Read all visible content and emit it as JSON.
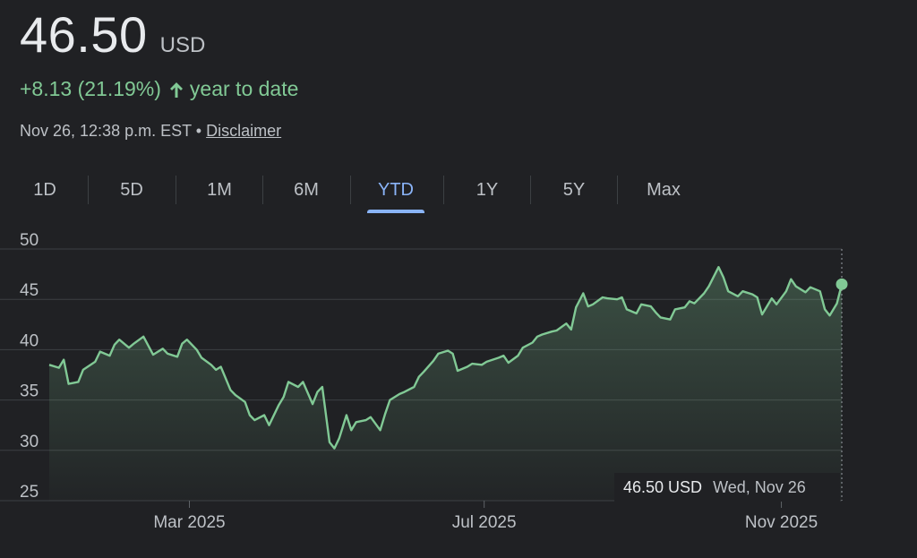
{
  "quote": {
    "price": "46.50",
    "currency": "USD",
    "change": "+8.13 (21.19%)",
    "change_suffix": "year to date",
    "timestamp": "Nov 26, 12:38 p.m. EST",
    "separator": "•",
    "disclaimer": "Disclaimer"
  },
  "tabs": [
    "1D",
    "5D",
    "1M",
    "6M",
    "YTD",
    "1Y",
    "5Y",
    "Max"
  ],
  "active_tab": "YTD",
  "tooltip": {
    "value": "46.50 USD",
    "date": "Wed, Nov 26"
  },
  "colors": {
    "line": "#81c995",
    "active_tab": "#8ab4f8",
    "background": "#202124",
    "grid": "#3c4043"
  },
  "chart_data": {
    "type": "area",
    "title": "",
    "xlabel": "",
    "ylabel": "",
    "ylim": [
      25,
      50
    ],
    "yticks": [
      25,
      30,
      35,
      40,
      45,
      50
    ],
    "xticks": [
      {
        "label": "Mar 2025",
        "date": "2025-03-01"
      },
      {
        "label": "Jul 2025",
        "date": "2025-07-01"
      },
      {
        "label": "Nov 2025",
        "date": "2025-11-01"
      }
    ],
    "grid": true,
    "series": [
      {
        "points": [
          [
            "2025-01-02",
            38.5
          ],
          [
            "2025-01-06",
            38.2
          ],
          [
            "2025-01-08",
            39.0
          ],
          [
            "2025-01-10",
            36.6
          ],
          [
            "2025-01-14",
            36.8
          ],
          [
            "2025-01-16",
            38.0
          ],
          [
            "2025-01-21",
            38.8
          ],
          [
            "2025-01-23",
            39.8
          ],
          [
            "2025-01-27",
            39.4
          ],
          [
            "2025-01-29",
            40.5
          ],
          [
            "2025-01-31",
            41.0
          ],
          [
            "2025-02-04",
            40.2
          ],
          [
            "2025-02-06",
            40.6
          ],
          [
            "2025-02-10",
            41.3
          ],
          [
            "2025-02-12",
            40.4
          ],
          [
            "2025-02-14",
            39.5
          ],
          [
            "2025-02-18",
            40.1
          ],
          [
            "2025-02-20",
            39.6
          ],
          [
            "2025-02-24",
            39.3
          ],
          [
            "2025-02-26",
            40.6
          ],
          [
            "2025-02-28",
            41.0
          ],
          [
            "2025-03-04",
            40.0
          ],
          [
            "2025-03-06",
            39.2
          ],
          [
            "2025-03-10",
            38.5
          ],
          [
            "2025-03-12",
            38.0
          ],
          [
            "2025-03-14",
            38.3
          ],
          [
            "2025-03-18",
            36.0
          ],
          [
            "2025-03-20",
            35.5
          ],
          [
            "2025-03-24",
            34.8
          ],
          [
            "2025-03-26",
            33.5
          ],
          [
            "2025-03-28",
            33.0
          ],
          [
            "2025-04-01",
            33.5
          ],
          [
            "2025-04-03",
            32.5
          ],
          [
            "2025-04-07",
            34.5
          ],
          [
            "2025-04-09",
            35.3
          ],
          [
            "2025-04-11",
            36.8
          ],
          [
            "2025-04-15",
            36.3
          ],
          [
            "2025-04-17",
            36.8
          ],
          [
            "2025-04-21",
            34.6
          ],
          [
            "2025-04-23",
            35.8
          ],
          [
            "2025-04-25",
            36.3
          ],
          [
            "2025-04-28",
            30.8
          ],
          [
            "2025-04-30",
            30.2
          ],
          [
            "2025-05-02",
            31.2
          ],
          [
            "2025-05-05",
            33.5
          ],
          [
            "2025-05-07",
            32.0
          ],
          [
            "2025-05-09",
            32.8
          ],
          [
            "2025-05-13",
            33.0
          ],
          [
            "2025-05-15",
            33.3
          ],
          [
            "2025-05-19",
            32.0
          ],
          [
            "2025-05-21",
            33.6
          ],
          [
            "2025-05-23",
            35.0
          ],
          [
            "2025-05-27",
            35.6
          ],
          [
            "2025-05-29",
            35.8
          ],
          [
            "2025-06-02",
            36.3
          ],
          [
            "2025-06-04",
            37.3
          ],
          [
            "2025-06-06",
            37.8
          ],
          [
            "2025-06-10",
            38.9
          ],
          [
            "2025-06-12",
            39.6
          ],
          [
            "2025-06-16",
            39.9
          ],
          [
            "2025-06-18",
            39.6
          ],
          [
            "2025-06-20",
            37.9
          ],
          [
            "2025-06-24",
            38.3
          ],
          [
            "2025-06-26",
            38.6
          ],
          [
            "2025-06-30",
            38.5
          ],
          [
            "2025-07-02",
            38.8
          ],
          [
            "2025-07-07",
            39.2
          ],
          [
            "2025-07-09",
            39.4
          ],
          [
            "2025-07-11",
            38.7
          ],
          [
            "2025-07-15",
            39.4
          ],
          [
            "2025-07-17",
            40.2
          ],
          [
            "2025-07-21",
            40.7
          ],
          [
            "2025-07-23",
            41.3
          ],
          [
            "2025-07-25",
            41.5
          ],
          [
            "2025-07-29",
            41.8
          ],
          [
            "2025-07-31",
            41.9
          ],
          [
            "2025-08-04",
            42.6
          ],
          [
            "2025-08-06",
            42.0
          ],
          [
            "2025-08-08",
            44.2
          ],
          [
            "2025-08-11",
            45.6
          ],
          [
            "2025-08-13",
            44.3
          ],
          [
            "2025-08-15",
            44.5
          ],
          [
            "2025-08-19",
            45.2
          ],
          [
            "2025-08-21",
            45.1
          ],
          [
            "2025-08-25",
            45.0
          ],
          [
            "2025-08-27",
            45.2
          ],
          [
            "2025-08-29",
            44.0
          ],
          [
            "2025-09-02",
            43.6
          ],
          [
            "2025-09-04",
            44.5
          ],
          [
            "2025-09-08",
            44.3
          ],
          [
            "2025-09-10",
            43.7
          ],
          [
            "2025-09-12",
            43.2
          ],
          [
            "2025-09-16",
            43.0
          ],
          [
            "2025-09-18",
            44.0
          ],
          [
            "2025-09-22",
            44.2
          ],
          [
            "2025-09-24",
            44.8
          ],
          [
            "2025-09-26",
            44.6
          ],
          [
            "2025-09-30",
            45.6
          ],
          [
            "2025-10-02",
            46.3
          ],
          [
            "2025-10-06",
            48.2
          ],
          [
            "2025-10-08",
            47.2
          ],
          [
            "2025-10-10",
            45.8
          ],
          [
            "2025-10-14",
            45.3
          ],
          [
            "2025-10-16",
            45.8
          ],
          [
            "2025-10-20",
            45.5
          ],
          [
            "2025-10-22",
            45.2
          ],
          [
            "2025-10-24",
            43.5
          ],
          [
            "2025-10-28",
            45.1
          ],
          [
            "2025-10-30",
            44.5
          ],
          [
            "2025-11-03",
            45.8
          ],
          [
            "2025-11-05",
            47.0
          ],
          [
            "2025-11-07",
            46.3
          ],
          [
            "2025-11-11",
            45.7
          ],
          [
            "2025-11-13",
            46.2
          ],
          [
            "2025-11-17",
            45.8
          ],
          [
            "2025-11-19",
            44.0
          ],
          [
            "2025-11-21",
            43.4
          ],
          [
            "2025-11-24",
            44.6
          ],
          [
            "2025-11-26",
            46.5
          ]
        ]
      }
    ]
  }
}
